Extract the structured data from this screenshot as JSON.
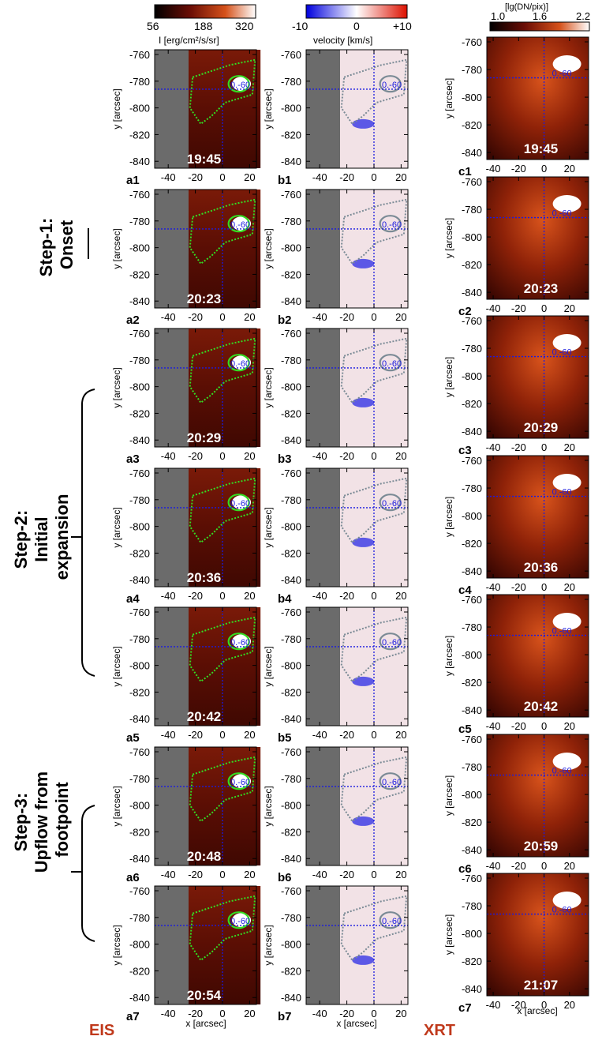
{
  "colorbars": {
    "intensity": {
      "ticks": [
        "56",
        "188",
        "320"
      ],
      "label": "I [erg/cm²/s/sr]"
    },
    "velocity": {
      "ticks": [
        "-10",
        "0",
        "+10"
      ],
      "label": "velocity [km/s]"
    },
    "xrt": {
      "ticks": [
        "1.0",
        "1.6",
        "2.2"
      ],
      "label": "[lg(DN/pix)]"
    }
  },
  "axes": {
    "ylabel": "y [arcsec]",
    "xlabel": "x [arcsec]",
    "y_ticks": [
      "-760",
      "-780",
      "-800",
      "-820",
      "-840"
    ],
    "x_ticks_eis": [
      "-40",
      "-20",
      "0",
      "20"
    ],
    "x_ticks_xrt": [
      "-40",
      "-20",
      "0",
      "20"
    ]
  },
  "contour_label": "0.-60",
  "eis_times": [
    "19:45",
    "20:23",
    "20:29",
    "20:36",
    "20:42",
    "20:48",
    "20:54"
  ],
  "xrt_times": [
    "19:45",
    "20:23",
    "20:29",
    "20:36",
    "20:42",
    "20:59",
    "21:07"
  ],
  "panel_labels": {
    "a": [
      "a1",
      "a2",
      "a3",
      "a4",
      "a5",
      "a6",
      "a7"
    ],
    "b": [
      "b1",
      "b2",
      "b3",
      "b4",
      "b5",
      "b6",
      "b7"
    ],
    "c": [
      "c1",
      "c2",
      "c3",
      "c4",
      "c5",
      "c6",
      "c7"
    ]
  },
  "steps": [
    {
      "lines": [
        "Step-1:",
        "Onset"
      ]
    },
    {
      "lines": [
        "Step-2:",
        "Initial",
        "expansion"
      ]
    },
    {
      "lines": [
        "Step-3:",
        "Upflow from",
        "footpoint"
      ]
    }
  ],
  "footer": {
    "eis": "EIS",
    "xrt": "XRT"
  },
  "colors": {
    "label_red": "#c0391b",
    "contour_green": "#33dd22",
    "contour_gray": "#7a8a95",
    "crosshair": "#1a1adf",
    "slit_gray": "#6b6b6b"
  }
}
